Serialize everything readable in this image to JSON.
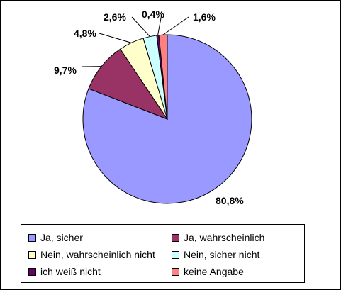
{
  "chart_data": {
    "type": "pie",
    "title": "",
    "start_angle_deg": 90,
    "direction": "clockwise",
    "slices": [
      {
        "label": "Ja, sicher",
        "value": 80.8,
        "label_text": "80,8%",
        "color": "#9999ff"
      },
      {
        "label": "Ja, wahrscheinlich",
        "value": 9.7,
        "label_text": "9,7%",
        "color": "#993366"
      },
      {
        "label": "Nein, wahrscheinlich nicht",
        "value": 4.8,
        "label_text": "4,8%",
        "color": "#ffffcc"
      },
      {
        "label": "Nein, sicher nicht",
        "value": 2.6,
        "label_text": "2,6%",
        "color": "#ccffff"
      },
      {
        "label": "ich weiß nicht",
        "value": 0.4,
        "label_text": "0,4%",
        "color": "#660066"
      },
      {
        "label": "keine Angabe",
        "value": 1.6,
        "label_text": "1,6%",
        "color": "#ff8080"
      }
    ],
    "legend_position": "bottom",
    "legend_columns": 2
  }
}
